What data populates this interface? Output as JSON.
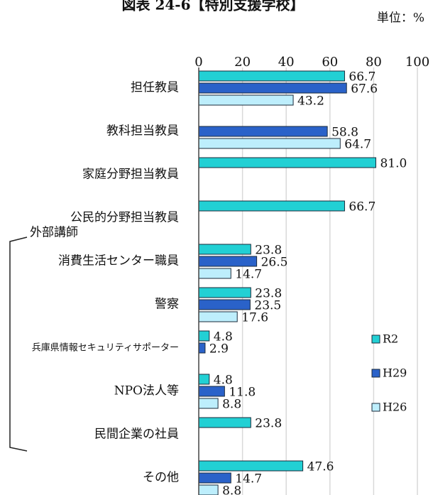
{
  "chart_data": {
    "type": "barh",
    "title": "図表 24-6【特別支援学校】",
    "unit_label": "単位：%",
    "group_label": "外部講師",
    "categories": [
      "担任教員",
      "教科担当教員",
      "家庭分野担当教員",
      "公民的分野担当教員",
      "消費生活センター職員",
      "警察",
      "兵庫県情報セキュリティサポーター",
      "NPO法人等",
      "民間企業の社員",
      "その他"
    ],
    "series": [
      {
        "name": "R2",
        "color": "#22d0d4",
        "values": [
          66.7,
          null,
          81.0,
          66.7,
          23.8,
          23.8,
          4.8,
          4.8,
          23.8,
          47.6
        ],
        "value_labels": [
          "66.7",
          null,
          "81.0",
          "66.7",
          "23.8",
          "23.8",
          "4.8",
          "4.8",
          "23.8",
          "47.6"
        ]
      },
      {
        "name": "H29",
        "color": "#2a62c9",
        "values": [
          67.6,
          58.8,
          null,
          null,
          26.5,
          23.5,
          2.9,
          11.8,
          null,
          14.7
        ],
        "value_labels": [
          "67.6",
          "58.8",
          null,
          null,
          "26.5",
          "23.5",
          "2.9",
          "11.8",
          null,
          "14.7"
        ]
      },
      {
        "name": "H26",
        "color": "#bdeefc",
        "values": [
          43.2,
          64.7,
          null,
          null,
          14.7,
          17.6,
          null,
          8.8,
          null,
          8.8
        ],
        "value_labels": [
          "43.2",
          "64.7",
          null,
          null,
          "14.7",
          "17.6",
          null,
          "8.8",
          null,
          "8.8"
        ]
      }
    ],
    "xlim": [
      0,
      100
    ],
    "xticks": [
      0,
      20,
      40,
      60,
      80,
      100
    ],
    "grid": true,
    "legend": "right"
  }
}
